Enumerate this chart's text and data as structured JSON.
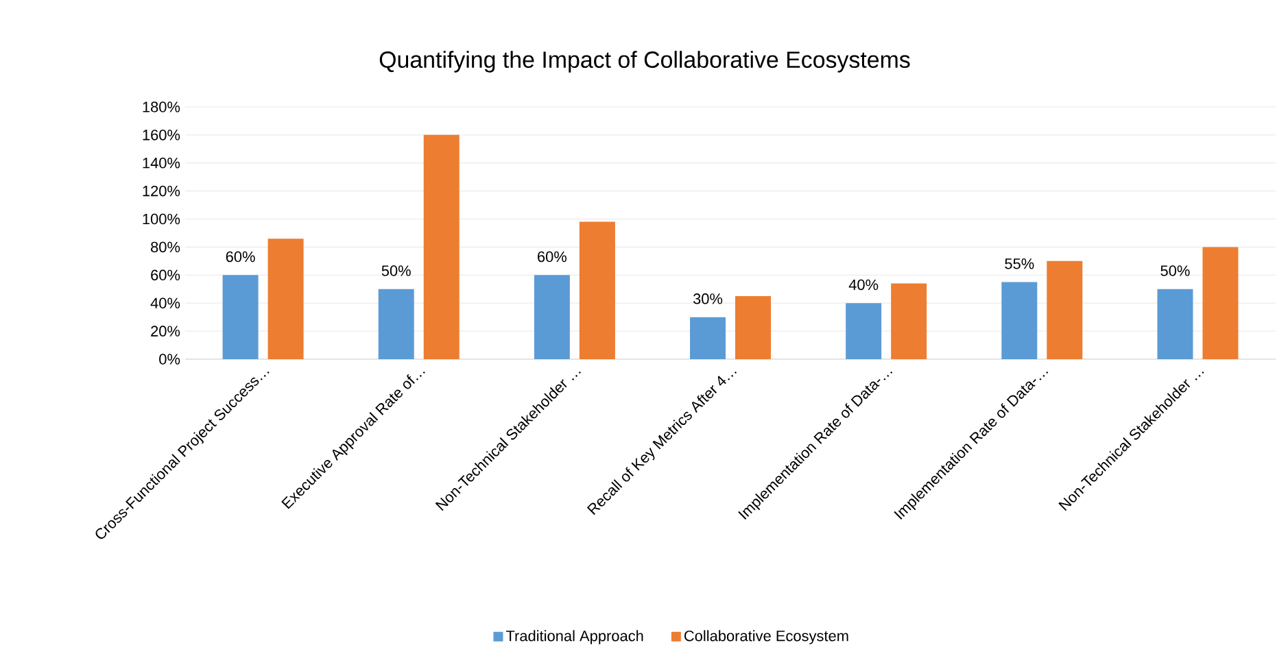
{
  "chart_data": {
    "type": "bar",
    "title": "Quantifying the Impact of Collaborative Ecosystems",
    "categories": [
      "Cross-Functional Project Success…",
      "Executive Approval Rate of…",
      "Non-Technical Stakeholder …",
      "Recall of Key Metrics After 4…",
      "Implementation Rate of Data-…",
      "Implementation Rate of Data-…",
      "Non-Technical Stakeholder …"
    ],
    "series": [
      {
        "name": "Traditional Approach",
        "color": "#5b9bd5",
        "values": [
          60,
          50,
          60,
          30,
          40,
          55,
          50
        ],
        "value_labels": [
          "60%",
          "50%",
          "60%",
          "30%",
          "40%",
          "55%",
          "50%"
        ]
      },
      {
        "name": "Collaborative Ecosystem",
        "color": "#ed7d31",
        "values": [
          86,
          160,
          98,
          45,
          54,
          70,
          80
        ]
      }
    ],
    "ylim": [
      0,
      180
    ],
    "yticks": [
      {
        "value": 0,
        "label": "0%"
      },
      {
        "value": 20,
        "label": "20%"
      },
      {
        "value": 40,
        "label": "40%"
      },
      {
        "value": 60,
        "label": "60%"
      },
      {
        "value": 80,
        "label": "80%"
      },
      {
        "value": 100,
        "label": "100%"
      },
      {
        "value": 120,
        "label": "120%"
      },
      {
        "value": 140,
        "label": "140%"
      },
      {
        "value": 160,
        "label": "160%"
      },
      {
        "value": 180,
        "label": "180%"
      }
    ],
    "grid": "y",
    "legend": "bottom"
  }
}
